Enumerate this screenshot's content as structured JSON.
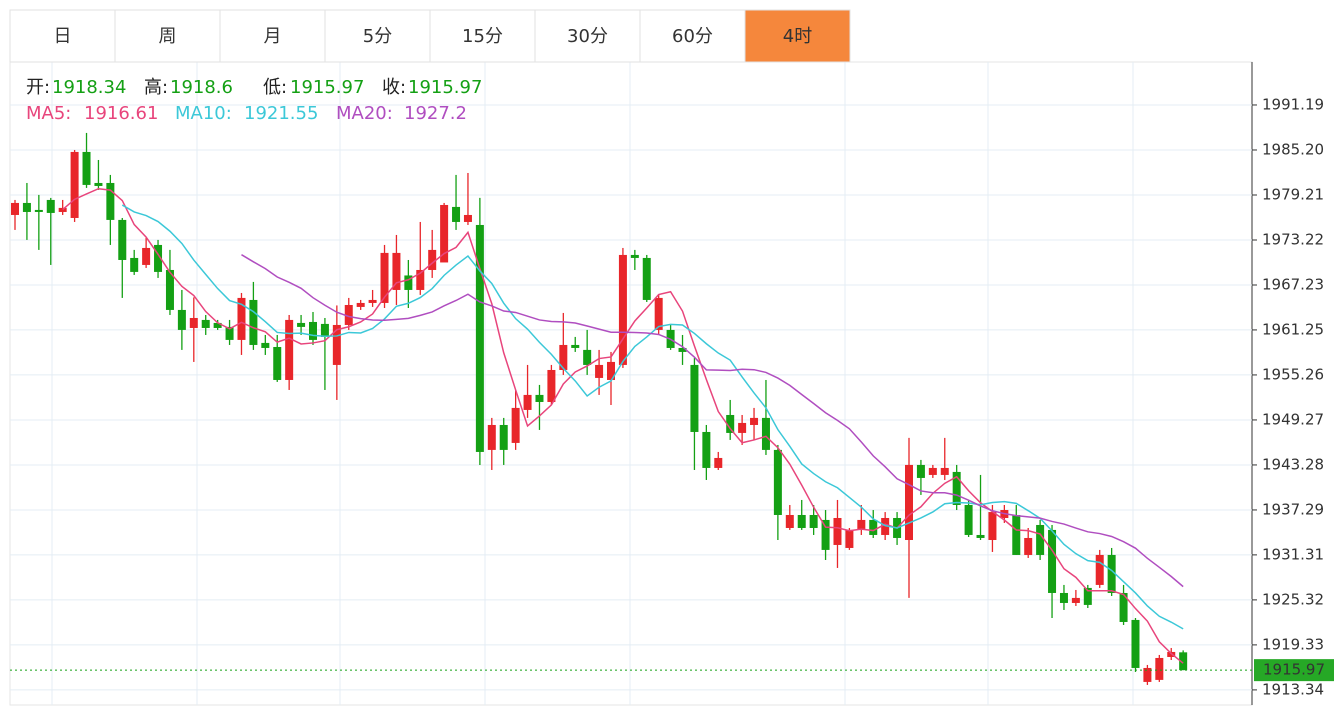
{
  "tabs": [
    "日",
    "周",
    "月",
    "5分",
    "15分",
    "30分",
    "60分",
    "4时"
  ],
  "active_tab": 7,
  "chart_data": {
    "type": "candlestick",
    "up_color": "#e8262a",
    "down_color": "#14a014",
    "stats": [
      {
        "label": "开:",
        "value": 1918.34
      },
      {
        "label": "高:",
        "value": 1918.6
      },
      {
        "label": "低:",
        "value": 1915.97
      },
      {
        "label": "收:",
        "value": 1915.97
      }
    ],
    "ma": [
      {
        "label": "MA5:",
        "value": 1916.61,
        "period": 5,
        "color": "#e8457c"
      },
      {
        "label": "MA10:",
        "value": 1921.55,
        "period": 10,
        "color": "#3cc8d8"
      },
      {
        "label": "MA20:",
        "value": 1927.2,
        "period": 20,
        "color": "#b04ec0"
      }
    ],
    "ylim": [
      1911.33,
      1996.91
    ],
    "yticks": [
      1991.19,
      {
        "value": 1985.2,
        "label": "1985.20"
      },
      1979.21,
      1973.22,
      1967.23,
      1961.25,
      1955.26,
      1949.27,
      1943.28,
      1937.29,
      1931.31,
      1925.32,
      1919.33,
      1913.34
    ],
    "open": [
      1976.55,
      1978.15,
      1977.22,
      1978.55,
      1976.95,
      1976.15,
      1984.94,
      1980.81,
      1980.81,
      1975.89,
      1970.83,
      1969.9,
      1972.56,
      1969.23,
      1963.91,
      1961.51,
      1962.58,
      1962.18,
      1961.65,
      1959.92,
      1965.24,
      1959.52,
      1958.98,
      1954.59,
      1962.18,
      1962.31,
      1962.05,
      1956.59,
      1961.91,
      1964.31,
      1964.84,
      1964.84,
      1966.57,
      1968.5,
      1966.57,
      1969.23,
      1970.23,
      1977.62,
      1975.62,
      1975.22,
      1945.28,
      1948.6,
      1946.21,
      1950.6,
      1952.6,
      1951.66,
      1955.92,
      1959.25,
      1958.59,
      1954.86,
      1954.59,
      1956.59,
      1971.23,
      1970.83,
      1961.25,
      1961.25,
      1958.85,
      1956.59,
      1947.67,
      1942.88,
      1949.93,
      1947.54,
      1948.6,
      1949.54,
      1945.28,
      1934.89,
      1936.62,
      1936.62,
      1935.96,
      1932.63,
      1932.23,
      1934.63,
      1935.96,
      1933.96,
      1936.22,
      1933.29,
      1943.28,
      1941.95,
      1941.95,
      1942.35,
      1937.95,
      1933.96,
      1933.29,
      1936.22,
      1936.62,
      1931.3,
      1935.29,
      1934.63,
      1926.24,
      1924.91,
      1926.91,
      1927.31,
      1931.3,
      1926.24,
      1922.65,
      1914.4,
      1914.67,
      1917.72,
      1918.34
    ],
    "close": [
      1978.15,
      1976.95,
      1976.95,
      1976.82,
      1977.49,
      1984.94,
      1980.55,
      1980.41,
      1975.89,
      1970.56,
      1968.97,
      1972.16,
      1968.97,
      1963.91,
      1961.25,
      1962.84,
      1961.51,
      1961.51,
      1959.92,
      1965.51,
      1959.25,
      1958.85,
      1954.59,
      1962.58,
      1961.65,
      1959.92,
      1960.32,
      1961.91,
      1964.57,
      1964.84,
      1965.24,
      1971.5,
      1971.5,
      1966.57,
      1969.23,
      1971.9,
      1977.88,
      1975.62,
      1976.55,
      1945.01,
      1948.6,
      1945.28,
      1950.87,
      1952.6,
      1951.66,
      1955.92,
      1959.25,
      1958.85,
      1956.59,
      1956.59,
      1956.99,
      1971.23,
      1970.83,
      1965.24,
      1965.51,
      1958.85,
      1958.32,
      1947.67,
      1942.88,
      1944.21,
      1947.54,
      1948.87,
      1949.54,
      1945.28,
      1936.62,
      1936.62,
      1934.89,
      1934.89,
      1931.97,
      1936.22,
      1934.63,
      1935.96,
      1933.96,
      1936.22,
      1933.56,
      1943.28,
      1941.55,
      1942.88,
      1942.88,
      1937.95,
      1933.96,
      1933.56,
      1937.01,
      1937.28,
      1931.3,
      1933.56,
      1931.3,
      1926.24,
      1924.91,
      1925.58,
      1924.65,
      1931.3,
      1926.24,
      1922.38,
      1916.26,
      1916.26,
      1917.59,
      1918.39,
      1915.97
    ],
    "high": [
      1978.55,
      1980.81,
      1979.22,
      1978.82,
      1978.55,
      1985.2,
      1987.47,
      1983.87,
      1981.88,
      1976.15,
      1971.9,
      1973.49,
      1973.23,
      1971.9,
      1966.57,
      1965.58,
      1963.24,
      1962.58,
      1962.58,
      1966.17,
      1967.64,
      1960.58,
      1960.58,
      1963.24,
      1963.24,
      1963.64,
      1962.84,
      1964.51,
      1965.51,
      1965.24,
      1966.57,
      1972.56,
      1973.89,
      1970.56,
      1975.62,
      1974.56,
      1978.15,
      1981.88,
      1982.14,
      1978.82,
      1949.54,
      1949.54,
      1953.26,
      1956.59,
      1953.93,
      1956.59,
      1963.51,
      1960.32,
      1961.25,
      1958.59,
      1958.32,
      1972.16,
      1971.9,
      1971.23,
      1965.91,
      1961.91,
      1960.58,
      1957.52,
      1948.6,
      1945.01,
      1951.93,
      1949.93,
      1950.87,
      1954.59,
      1945.94,
      1937.95,
      1938.62,
      1937.95,
      1937.28,
      1938.62,
      1934.89,
      1937.95,
      1937.28,
      1937.01,
      1937.01,
      1946.88,
      1943.95,
      1943.28,
      1946.88,
      1943.28,
      1938.62,
      1941.95,
      1937.95,
      1937.95,
      1937.95,
      1934.89,
      1935.96,
      1935.29,
      1927.31,
      1926.64,
      1927.31,
      1931.97,
      1932.23,
      1927.31,
      1922.91,
      1916.66,
      1917.99,
      1918.92,
      1918.6
    ],
    "low": [
      1974.56,
      1973.23,
      1971.9,
      1969.9,
      1976.55,
      1975.62,
      1980.15,
      1979.88,
      1972.56,
      1965.51,
      1968.57,
      1969.5,
      1968.17,
      1963.24,
      1958.59,
      1956.99,
      1960.58,
      1961.25,
      1959.25,
      1957.92,
      1958.59,
      1957.92,
      1954.33,
      1953.26,
      1960.58,
      1959.25,
      1953.26,
      1951.93,
      1961.25,
      1963.91,
      1964.31,
      1964.17,
      1964.57,
      1964.17,
      1965.91,
      1968.17,
      1970.56,
      1974.56,
      1975.22,
      1943.28,
      1942.61,
      1943.28,
      1945.28,
      1949.54,
      1947.94,
      1951.26,
      1955.26,
      1958.32,
      1955.26,
      1952.6,
      1951.26,
      1956.19,
      1969.23,
      1964.97,
      1960.58,
      1958.59,
      1956.59,
      1942.61,
      1941.28,
      1942.61,
      1946.61,
      1945.94,
      1946.61,
      1944.61,
      1933.29,
      1934.63,
      1934.63,
      1933.96,
      1930.63,
      1929.57,
      1931.97,
      1933.96,
      1933.56,
      1933.29,
      1932.63,
      1925.58,
      1939.29,
      1941.55,
      1941.28,
      1937.28,
      1933.69,
      1933.29,
      1931.7,
      1935.56,
      1931.3,
      1930.9,
      1930.63,
      1922.91,
      1923.98,
      1924.51,
      1924.24,
      1926.91,
      1925.84,
      1921.98,
      1915.73,
      1914.0,
      1914.4,
      1917.32,
      1915.97
    ]
  }
}
